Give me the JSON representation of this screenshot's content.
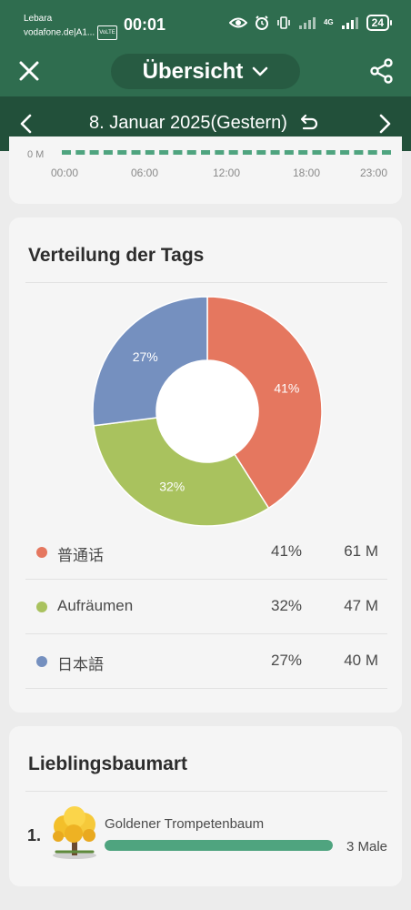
{
  "status_bar": {
    "carrier_line1": "Lebara",
    "carrier_line2": "vodafone.de|A1...",
    "volte": "VoLTE",
    "time": "00:01",
    "network": "4G",
    "battery": "24"
  },
  "header": {
    "title": "Übersicht",
    "date": "8. Januar 2025(Gestern)"
  },
  "timeline": {
    "zero_label": "0 M",
    "ticks": [
      "00:00",
      "06:00",
      "12:00",
      "18:00",
      "23:00"
    ]
  },
  "tags_card": {
    "title": "Verteilung der Tags",
    "chart_data": {
      "type": "pie",
      "labels": [
        "普通话",
        "Aufräumen",
        "日本語"
      ],
      "values": [
        41,
        32,
        27
      ],
      "value_labels": [
        "41%",
        "32%",
        "27%"
      ],
      "colors": [
        "#e5775f",
        "#a9c25e",
        "#7590bf"
      ],
      "sizes": [
        "61 M",
        "47 M",
        "40 M"
      ]
    }
  },
  "tree_card": {
    "title": "Lieblingsbaumart",
    "items": [
      {
        "rank": "1.",
        "name": "Goldener Trompetenbaum",
        "count": "3 Male",
        "fraction": 1.0
      }
    ]
  },
  "icons": {
    "close": "close-icon",
    "dropdown": "chevron-down-icon",
    "share": "share-icon",
    "prev": "chevron-left-icon",
    "next": "chevron-right-icon",
    "return": "return-icon",
    "tree": "golden-tree-icon"
  }
}
